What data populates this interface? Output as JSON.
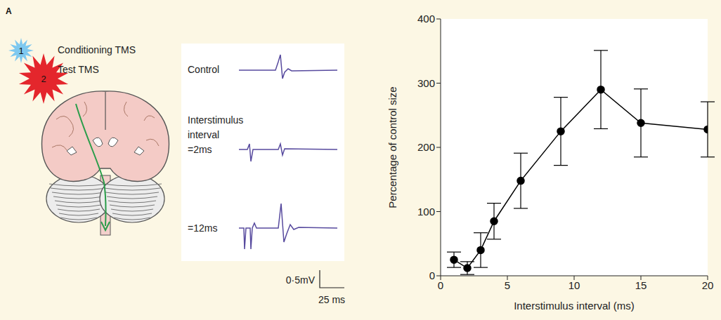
{
  "panel_label": "A",
  "diagram": {
    "stimuli": [
      {
        "number": "1",
        "label": "Conditioning TMS",
        "color": "#7ec8ef"
      },
      {
        "number": "2",
        "label": "Test TMS",
        "color": "#e4262c"
      }
    ],
    "traces": [
      {
        "label": "Control"
      },
      {
        "label": "Interstimulus interval =2ms"
      },
      {
        "label": "=12ms"
      }
    ],
    "scale_bar": {
      "amplitude": "0·5mV",
      "time": "25 ms"
    }
  },
  "chart_data": {
    "type": "line",
    "x": [
      1,
      2,
      3,
      4,
      6,
      9,
      12,
      15,
      20
    ],
    "values": [
      25,
      12,
      40,
      85,
      148,
      225,
      290,
      238,
      228
    ],
    "errors": [
      12,
      10,
      27,
      28,
      43,
      53,
      61,
      53,
      43
    ],
    "color": "#000000",
    "marker": "circle",
    "xlabel": "Interstimulus interval (ms)",
    "ylabel": "Percentage of control size",
    "xlim": [
      0,
      20
    ],
    "xticks": [
      0,
      5,
      10,
      15,
      20
    ],
    "ylim": [
      0,
      400
    ],
    "yticks": [
      0,
      100,
      200,
      300,
      400
    ],
    "grid": false
  }
}
